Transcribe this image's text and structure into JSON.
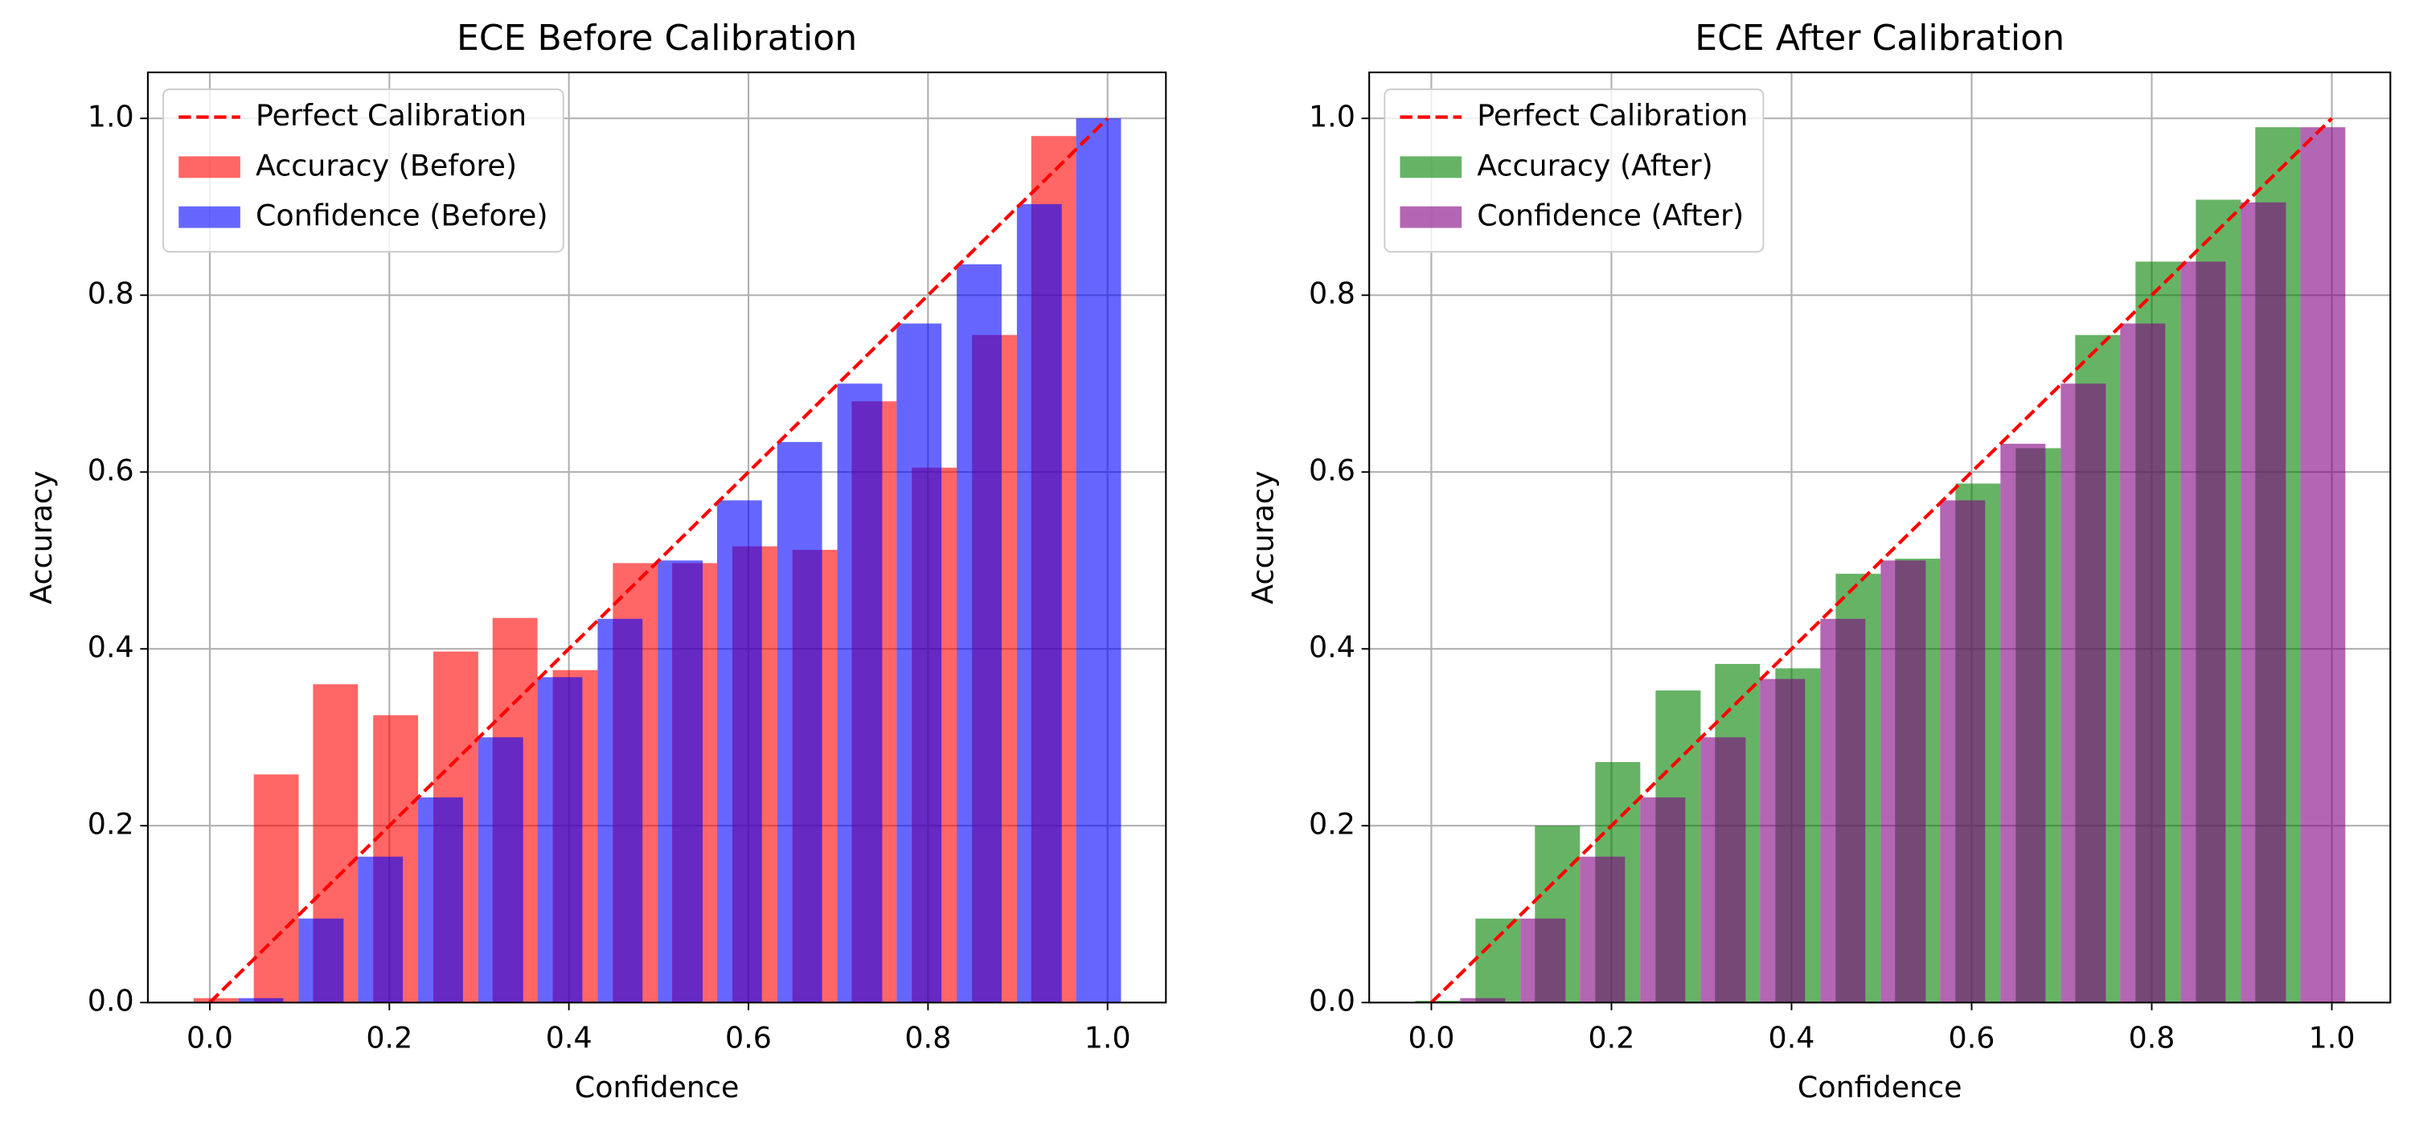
{
  "chart_data": [
    {
      "type": "bar",
      "title": "ECE Before Calibration",
      "xlabel": "Confidence",
      "ylabel": "Accuracy",
      "xlim": [
        -0.069,
        1.065
      ],
      "ylim": [
        0,
        1.052
      ],
      "xticks": [
        {
          "value": 0,
          "label": "0.0"
        },
        0.2,
        0.4,
        0.6,
        0.8,
        {
          "value": 1,
          "label": "1.0"
        }
      ],
      "yticks": [
        {
          "value": 0,
          "label": "0.0"
        },
        0.2,
        0.4,
        0.6,
        0.8,
        {
          "value": 1,
          "label": "1.0"
        }
      ],
      "grid": true,
      "legend": "upper left",
      "bar_width": 0.05,
      "series": [
        {
          "name": "Perfect Calibration",
          "type": "line",
          "color": "red",
          "dashed": true,
          "x": [
            0,
            1
          ],
          "values": [
            0,
            1
          ]
        },
        {
          "name": "Accuracy (Before)",
          "color": "red",
          "opacity": 0.6,
          "x": [
            0.007,
            0.074,
            0.14,
            0.207,
            0.274,
            0.34,
            0.407,
            0.474,
            0.54,
            0.607,
            0.674,
            0.74,
            0.807,
            0.874,
            0.94
          ],
          "values": [
            0.005,
            0.258,
            0.36,
            0.325,
            0.397,
            0.435,
            0.376,
            0.497,
            0.497,
            0.516,
            0.512,
            0.68,
            0.605,
            0.755,
            0.98
          ]
        },
        {
          "name": "Confidence (Before)",
          "color": "blue",
          "opacity": 0.6,
          "x": [
            0.057,
            0.124,
            0.19,
            0.257,
            0.324,
            0.39,
            0.457,
            0.524,
            0.59,
            0.657,
            0.724,
            0.79,
            0.857,
            0.924,
            0.99
          ],
          "values": [
            0.005,
            0.095,
            0.165,
            0.232,
            0.3,
            0.368,
            0.434,
            0.5,
            0.568,
            0.634,
            0.7,
            0.768,
            0.835,
            0.903,
            1.0
          ]
        }
      ]
    },
    {
      "type": "bar",
      "title": "ECE After Calibration",
      "xlabel": "Confidence",
      "ylabel": "Accuracy",
      "xlim": [
        -0.069,
        1.065
      ],
      "ylim": [
        0,
        1.052
      ],
      "xticks": [
        {
          "value": 0,
          "label": "0.0"
        },
        0.2,
        0.4,
        0.6,
        0.8,
        {
          "value": 1,
          "label": "1.0"
        }
      ],
      "yticks": [
        {
          "value": 0,
          "label": "0.0"
        },
        0.2,
        0.4,
        0.6,
        0.8,
        {
          "value": 1,
          "label": "1.0"
        }
      ],
      "grid": true,
      "legend": "upper left",
      "bar_width": 0.05,
      "series": [
        {
          "name": "Perfect Calibration",
          "type": "line",
          "color": "red",
          "dashed": true,
          "x": [
            0,
            1
          ],
          "values": [
            0,
            1
          ]
        },
        {
          "name": "Accuracy (After)",
          "color": "green",
          "opacity": 0.6,
          "x": [
            0.007,
            0.074,
            0.14,
            0.207,
            0.274,
            0.34,
            0.407,
            0.474,
            0.54,
            0.607,
            0.674,
            0.74,
            0.807,
            0.874,
            0.94
          ],
          "values": [
            0.002,
            0.095,
            0.2,
            0.272,
            0.353,
            0.383,
            0.378,
            0.485,
            0.502,
            0.587,
            0.627,
            0.755,
            0.838,
            0.908,
            0.99
          ]
        },
        {
          "name": "Confidence (After)",
          "color": "purple",
          "opacity": 0.6,
          "x": [
            0.057,
            0.124,
            0.19,
            0.257,
            0.324,
            0.39,
            0.457,
            0.524,
            0.59,
            0.657,
            0.724,
            0.79,
            0.857,
            0.924,
            0.99
          ],
          "values": [
            0.005,
            0.095,
            0.165,
            0.232,
            0.3,
            0.366,
            0.434,
            0.5,
            0.568,
            0.632,
            0.7,
            0.768,
            0.838,
            0.905,
            0.99
          ]
        }
      ]
    }
  ]
}
